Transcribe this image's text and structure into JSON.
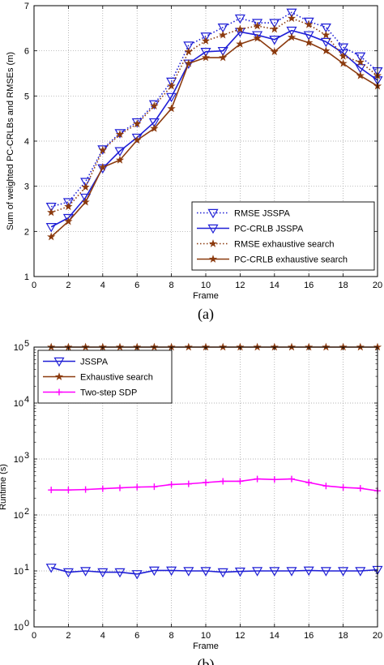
{
  "chart_data": [
    {
      "type": "line",
      "panel_label": "(a)",
      "xlabel": "Frame",
      "ylabel": "Sum of weighted PC-CRLBs and RMSEs (m)",
      "xlim": [
        0,
        20
      ],
      "ylim": [
        1,
        7
      ],
      "x_ticks": [
        0,
        2,
        4,
        6,
        8,
        10,
        12,
        14,
        16,
        18,
        20
      ],
      "y_ticks": [
        1,
        2,
        3,
        4,
        5,
        6,
        7
      ],
      "grid": true,
      "legend_position": "bottom-right",
      "x": [
        1,
        2,
        3,
        4,
        5,
        6,
        7,
        8,
        9,
        10,
        11,
        12,
        13,
        14,
        15,
        16,
        17,
        18,
        19,
        20
      ],
      "series": [
        {
          "name": "RMSE JSSPA",
          "color": "#1f1fd6",
          "dash": "dotted",
          "marker": "triangle-down",
          "values": [
            2.55,
            2.65,
            3.1,
            3.82,
            4.18,
            4.42,
            4.82,
            5.32,
            6.12,
            6.32,
            6.52,
            6.72,
            6.62,
            6.62,
            6.85,
            6.65,
            6.52,
            6.08,
            5.88,
            5.55
          ]
        },
        {
          "name": "PC-CRLB JSSPA",
          "color": "#1f1fd6",
          "dash": "solid",
          "marker": "triangle-down",
          "values": [
            2.1,
            2.3,
            2.75,
            3.4,
            3.78,
            4.08,
            4.42,
            4.98,
            5.72,
            5.98,
            6.0,
            6.42,
            6.35,
            6.25,
            6.45,
            6.35,
            6.2,
            5.95,
            5.62,
            5.35
          ]
        },
        {
          "name": "RMSE exhaustive search",
          "color": "#8b3a0e",
          "dash": "dotted",
          "marker": "star",
          "values": [
            2.42,
            2.55,
            2.98,
            3.8,
            4.15,
            4.38,
            4.78,
            5.22,
            5.98,
            6.22,
            6.35,
            6.48,
            6.55,
            6.48,
            6.72,
            6.58,
            6.35,
            5.88,
            5.75,
            5.45
          ]
        },
        {
          "name": "PC-CRLB exhaustive search",
          "color": "#8b3a0e",
          "dash": "solid",
          "marker": "star",
          "values": [
            1.88,
            2.22,
            2.65,
            3.42,
            3.58,
            4.02,
            4.28,
            4.72,
            5.72,
            5.85,
            5.85,
            6.15,
            6.28,
            5.98,
            6.3,
            6.18,
            6.0,
            5.72,
            5.45,
            5.22
          ]
        }
      ]
    },
    {
      "type": "line",
      "panel_label": "(b)",
      "xlabel": "Frame",
      "ylabel": "Runtime (s)",
      "xlim": [
        0,
        20
      ],
      "ylim": [
        1,
        100000
      ],
      "yscale": "log",
      "x_ticks": [
        0,
        2,
        4,
        6,
        8,
        10,
        12,
        14,
        16,
        18,
        20
      ],
      "y_ticks": [
        {
          "value": 1,
          "base": "10",
          "exp": "0"
        },
        {
          "value": 10,
          "base": "10",
          "exp": "1"
        },
        {
          "value": 100,
          "base": "10",
          "exp": "2"
        },
        {
          "value": 1000,
          "base": "10",
          "exp": "3"
        },
        {
          "value": 10000,
          "base": "10",
          "exp": "4"
        },
        {
          "value": 100000,
          "base": "10",
          "exp": "5"
        }
      ],
      "grid": true,
      "legend_position": "top-left",
      "x": [
        1,
        2,
        3,
        4,
        5,
        6,
        7,
        8,
        9,
        10,
        11,
        12,
        13,
        14,
        15,
        16,
        17,
        18,
        19,
        20
      ],
      "series": [
        {
          "name": "JSSPA",
          "color": "#1f1fd6",
          "dash": "solid",
          "marker": "triangle-down",
          "values": [
            11.5,
            9.5,
            10,
            9.5,
            9.5,
            8.8,
            10.2,
            10.2,
            10,
            10,
            9.5,
            9.8,
            10,
            10,
            10,
            10.2,
            10,
            10,
            10,
            10.5
          ]
        },
        {
          "name": "Exhaustive search",
          "color": "#8b3a0e",
          "dash": "solid",
          "marker": "star",
          "values": [
            100000,
            100000,
            100000,
            100000,
            100000,
            100000,
            100000,
            100000,
            100000,
            100000,
            100000,
            100000,
            100000,
            100000,
            100000,
            100000,
            100000,
            100000,
            100000,
            100000
          ]
        },
        {
          "name": "Two-step SDP",
          "color": "#ff00ff",
          "dash": "solid",
          "marker": "plus",
          "values": [
            280,
            280,
            285,
            295,
            305,
            315,
            320,
            350,
            360,
            380,
            400,
            400,
            440,
            430,
            440,
            380,
            330,
            310,
            300,
            270
          ]
        }
      ]
    }
  ]
}
